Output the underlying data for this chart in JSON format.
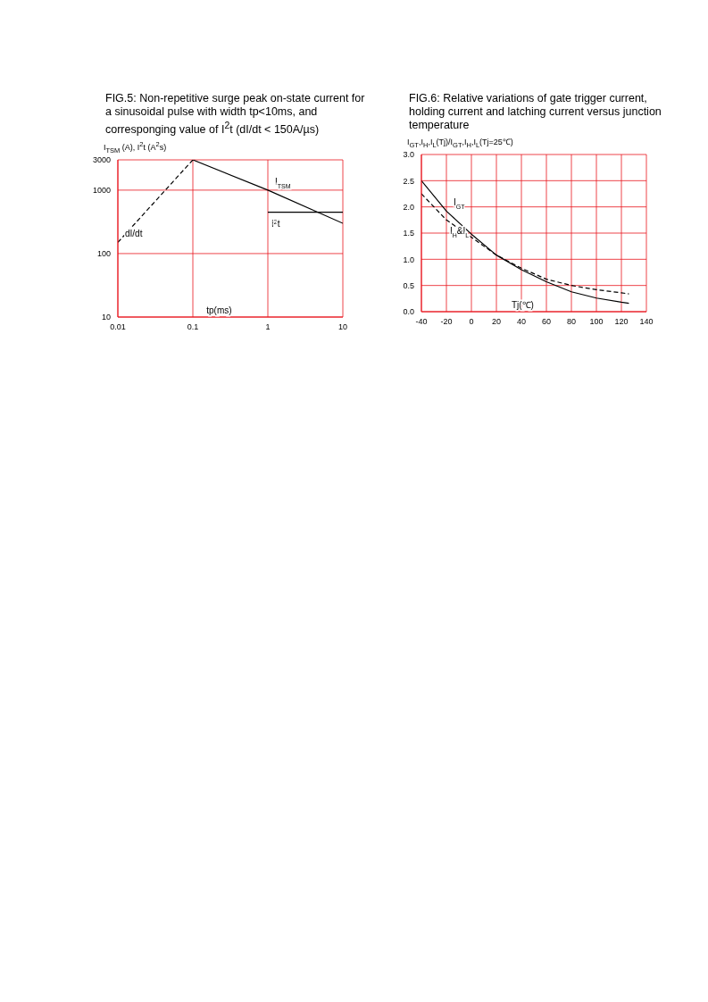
{
  "chart_data": [
    {
      "type": "line",
      "title": "FIG.5: Non-repetitive surge peak on-state current for a sinusoidal pulse with width tp<10ms, and corresponging value of I$^{2}$t (dI/dt < 150A/µs)",
      "xlabel": "tp(ms)",
      "ylabel": "I$_{TSM}$ (A), I$^{2}$t (A$^{2}$s)",
      "log": "xy",
      "xlim": [
        0.01,
        10
      ],
      "xticks": [
        0.01,
        0.1,
        1,
        10
      ],
      "ylim": [
        10,
        3000
      ],
      "yticks": [
        10,
        100,
        1000,
        3000
      ],
      "grid": true,
      "marker": "none",
      "series": [
        {
          "name": "I$_{TSM}$",
          "color": "#000000",
          "x": [
            0.1,
            1,
            10
          ],
          "values": [
            3000,
            1000,
            300
          ]
        },
        {
          "name": "I$^{2}$t",
          "color": "#000000",
          "x": [
            1,
            10
          ],
          "values": [
            450,
            450
          ]
        },
        {
          "name": "dI/dt",
          "color": "#000000",
          "line_style": "dashed",
          "x": [
            0.01,
            0.1
          ],
          "values": [
            150,
            3000
          ]
        }
      ]
    },
    {
      "type": "line",
      "title": "FIG.6: Relative variations of gate trigger current, holding current and latching current versus junction temperature",
      "xlabel": "Tj(℃)",
      "ylabel": "I$_{GT}$,I$_{H}$,I$_{L}$(Tj)/I$_{GT}$,I$_{H}$,I$_{L}$(Tj=25℃)",
      "xlim": [
        -40,
        140
      ],
      "xticks": [
        -40,
        -20,
        0,
        20,
        40,
        60,
        80,
        100,
        120,
        140
      ],
      "ylim": [
        0,
        3
      ],
      "yticks": [
        {
          "value": 0,
          "label": "0.0"
        },
        0.5,
        {
          "value": 1,
          "label": "1.0"
        },
        1.5,
        {
          "value": 2,
          "label": "2.0"
        },
        2.5,
        {
          "value": 3,
          "label": "3.0"
        }
      ],
      "grid": true,
      "marker": "none",
      "series": [
        {
          "name": "I$_{GT}$",
          "color": "#000000",
          "x": [
            -40,
            -20,
            0,
            20,
            40,
            60,
            80,
            100,
            120,
            126
          ],
          "values": [
            2.5,
            1.92,
            1.48,
            1.08,
            0.8,
            0.57,
            0.38,
            0.26,
            0.18,
            0.16
          ]
        },
        {
          "name": "I$_{H}$&I$_{L}$",
          "color": "#000000",
          "line_style": "dashed",
          "x": [
            -40,
            -20,
            0,
            20,
            40,
            60,
            80,
            100,
            120,
            126
          ],
          "values": [
            2.25,
            1.75,
            1.42,
            1.08,
            0.83,
            0.62,
            0.5,
            0.42,
            0.36,
            0.34
          ]
        }
      ]
    }
  ]
}
